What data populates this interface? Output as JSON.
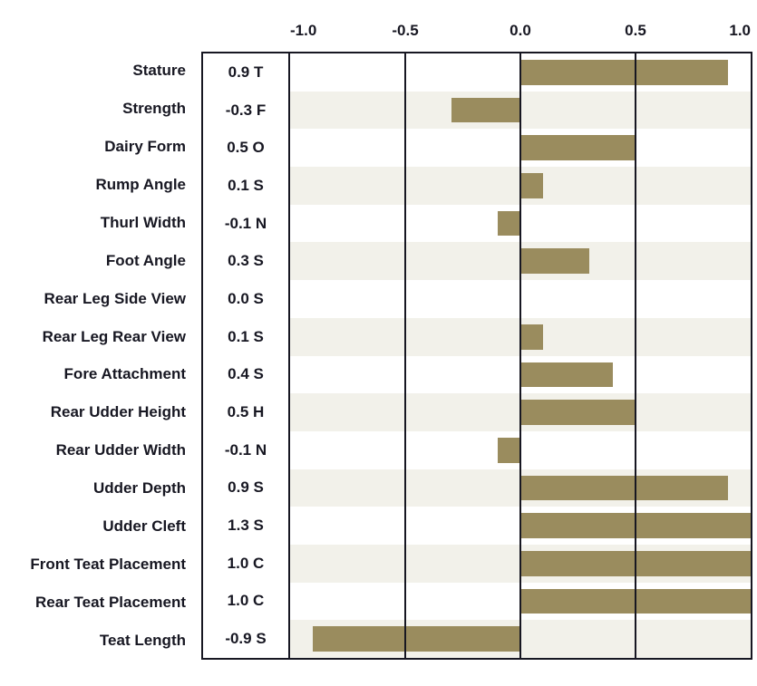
{
  "chart_data": {
    "type": "bar",
    "orientation": "horizontal",
    "title": "",
    "xlabel": "",
    "ylabel": "",
    "xlim": [
      -1.0,
      1.0
    ],
    "grid": true,
    "legend": false,
    "x_ticks": [
      {
        "label": "-1.0",
        "value": -1.0
      },
      {
        "label": "-0.5",
        "value": -0.5
      },
      {
        "label": "0.0",
        "value": 0.0
      },
      {
        "label": "0.5",
        "value": 0.5
      },
      {
        "label": "1.0",
        "value": 1.0
      }
    ],
    "rows": [
      {
        "label": "Stature",
        "value": 0.9,
        "display": "0.9 T"
      },
      {
        "label": "Strength",
        "value": -0.3,
        "display": "-0.3 F"
      },
      {
        "label": "Dairy Form",
        "value": 0.5,
        "display": "0.5 O"
      },
      {
        "label": "Rump Angle",
        "value": 0.1,
        "display": "0.1 S"
      },
      {
        "label": "Thurl Width",
        "value": -0.1,
        "display": "-0.1 N"
      },
      {
        "label": "Foot Angle",
        "value": 0.3,
        "display": "0.3 S"
      },
      {
        "label": "Rear Leg Side View",
        "value": 0.0,
        "display": "0.0 S"
      },
      {
        "label": "Rear Leg Rear View",
        "value": 0.1,
        "display": "0.1 S"
      },
      {
        "label": "Fore Attachment",
        "value": 0.4,
        "display": "0.4 S"
      },
      {
        "label": "Rear Udder Height",
        "value": 0.5,
        "display": "0.5 H"
      },
      {
        "label": "Rear Udder Width",
        "value": -0.1,
        "display": "-0.1 N"
      },
      {
        "label": "Udder Depth",
        "value": 0.9,
        "display": "0.9 S"
      },
      {
        "label": "Udder Cleft",
        "value": 1.3,
        "display": "1.3 S"
      },
      {
        "label": "Front Teat Placement",
        "value": 1.0,
        "display": "1.0 C"
      },
      {
        "label": "Rear Teat Placement",
        "value": 1.0,
        "display": "1.0 C"
      },
      {
        "label": "Teat Length",
        "value": -0.9,
        "display": "-0.9 S"
      }
    ],
    "colors": {
      "bar": "#9a8c5e",
      "stripe": "#f2f1ea",
      "line": "#171722",
      "text": "#171722"
    }
  }
}
